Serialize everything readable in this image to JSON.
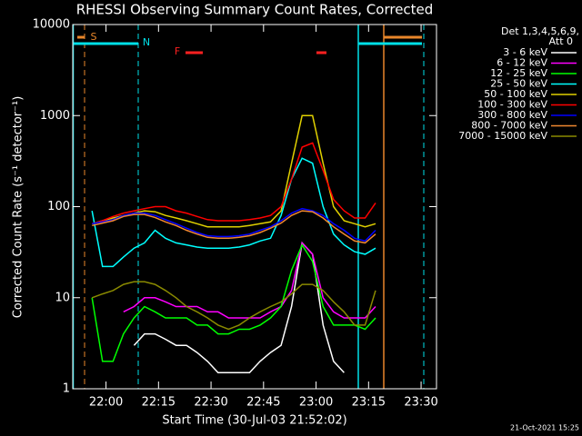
{
  "chart_data": {
    "type": "line",
    "title": "RHESSI Observing Summary Count Rates, Corrected",
    "xlabel": "Start Time (30-Jul-03 21:52:02)",
    "ylabel": "Corrected Count Rate (s⁻¹ detector⁻¹)",
    "legend_title": [
      "Det 1,3,4,5,6,9,",
      "Att 0"
    ],
    "timestamp": "21-Oct-2021 15:25",
    "log_y": true,
    "xlim": [
      1310.5,
      1414.4
    ],
    "ylim": [
      1,
      10000
    ],
    "yticks": [
      1,
      10,
      100,
      1000,
      10000
    ],
    "xticks": [
      {
        "value": 1320,
        "label": "22:00"
      },
      {
        "value": 1335,
        "label": "22:15"
      },
      {
        "value": 1350,
        "label": "22:30"
      },
      {
        "value": 1365,
        "label": "22:45"
      },
      {
        "value": 1380,
        "label": "23:00"
      },
      {
        "value": 1395,
        "label": "23:15"
      },
      {
        "value": 1410,
        "label": "23:30"
      }
    ],
    "annotations": [
      {
        "text": "S",
        "color": "#e8862a"
      },
      {
        "text": "N",
        "color": "#00e0e8"
      },
      {
        "text": "F",
        "color": "#ff2020"
      }
    ],
    "x": [
      1316,
      1319,
      1322,
      1325,
      1328,
      1331,
      1334,
      1337,
      1340,
      1343,
      1346,
      1349,
      1352,
      1355,
      1358,
      1361,
      1364,
      1367,
      1370,
      1373,
      1376,
      1379,
      1382,
      1385,
      1388,
      1391,
      1394,
      1397
    ],
    "series": [
      {
        "name": "3 - 6 keV",
        "color": "#ffffff",
        "values": [
          null,
          null,
          null,
          null,
          3,
          4,
          4,
          3.5,
          3,
          3,
          2.5,
          2,
          1.5,
          1.5,
          1.5,
          1.5,
          2,
          2.5,
          3,
          8,
          40,
          30,
          5,
          2,
          1.5,
          null,
          null,
          null
        ]
      },
      {
        "name": "6 - 12 keV",
        "color": "#ff00ff",
        "values": [
          null,
          null,
          null,
          7,
          8,
          10,
          10,
          9,
          8,
          8,
          8,
          7,
          7,
          6,
          6,
          6,
          6,
          7,
          8,
          12,
          40,
          30,
          10,
          7,
          6,
          6,
          6,
          8
        ]
      },
      {
        "name": "12 - 25 keV",
        "color": "#00ff00",
        "values": [
          10,
          2,
          2,
          4,
          6,
          8,
          7,
          6,
          6,
          6,
          5,
          5,
          4,
          4,
          4.5,
          4.5,
          5,
          6,
          8,
          20,
          38,
          25,
          8,
          5,
          5,
          5,
          4.5,
          6
        ]
      },
      {
        "name": "25 - 50 keV",
        "color": "#00ffff",
        "values": [
          90,
          22,
          22,
          28,
          35,
          40,
          55,
          45,
          40,
          38,
          36,
          35,
          35,
          35,
          36,
          38,
          42,
          45,
          80,
          200,
          340,
          300,
          100,
          50,
          38,
          32,
          30,
          35
        ]
      },
      {
        "name": "50 - 100 keV",
        "color": "#e0d000",
        "values": [
          65,
          70,
          75,
          80,
          85,
          90,
          88,
          80,
          75,
          70,
          65,
          60,
          60,
          60,
          60,
          62,
          65,
          68,
          90,
          300,
          1000,
          1000,
          300,
          100,
          70,
          65,
          60,
          65
        ]
      },
      {
        "name": "100 - 300 keV",
        "color": "#ff0000",
        "values": [
          65,
          70,
          78,
          85,
          90,
          95,
          100,
          100,
          90,
          85,
          78,
          72,
          70,
          70,
          70,
          72,
          75,
          80,
          100,
          200,
          450,
          500,
          250,
          120,
          90,
          75,
          75,
          110
        ]
      },
      {
        "name": "300 - 800 keV",
        "color": "#0000ff",
        "values": [
          65,
          68,
          72,
          80,
          85,
          85,
          80,
          72,
          65,
          58,
          52,
          48,
          47,
          47,
          48,
          50,
          55,
          60,
          70,
          85,
          95,
          90,
          80,
          65,
          55,
          45,
          42,
          55
        ]
      },
      {
        "name": "800 - 7000 keV",
        "color": "#f08830",
        "values": [
          62,
          66,
          70,
          78,
          82,
          82,
          76,
          68,
          62,
          55,
          50,
          46,
          45,
          45,
          46,
          48,
          52,
          58,
          66,
          80,
          90,
          88,
          75,
          60,
          50,
          42,
          40,
          50
        ]
      },
      {
        "name": "7000 - 15000 keV",
        "color": "#8a8a00",
        "values": [
          10,
          11,
          12,
          14,
          15,
          15,
          14,
          12,
          10,
          8,
          7,
          6,
          5,
          4.5,
          5,
          6,
          7,
          8,
          9,
          11,
          14,
          14,
          12,
          9,
          7,
          5,
          5,
          12
        ]
      }
    ]
  }
}
